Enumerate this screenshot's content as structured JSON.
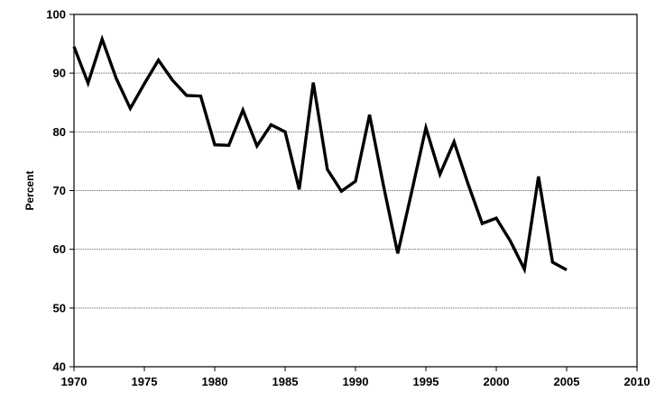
{
  "chart_data": {
    "type": "line",
    "title": "",
    "xlabel": "",
    "ylabel": "Percent",
    "xlim": [
      1970,
      2010
    ],
    "ylim": [
      40,
      100
    ],
    "xticks": [
      1970,
      1975,
      1980,
      1985,
      1990,
      1995,
      2000,
      2005,
      2010
    ],
    "yticks": [
      40,
      50,
      60,
      70,
      80,
      90,
      100
    ],
    "grid": "horizontal",
    "legend": "none",
    "series": [
      {
        "color": "#000000",
        "x": [
          1970,
          1971,
          1972,
          1973,
          1974,
          1975,
          1976,
          1977,
          1978,
          1979,
          1980,
          1981,
          1982,
          1983,
          1984,
          1985,
          1986,
          1987,
          1988,
          1989,
          1990,
          1991,
          1992,
          1993,
          1994,
          1995,
          1996,
          1997,
          1998,
          1999,
          2000,
          2001,
          2002,
          2003,
          2004,
          2005
        ],
        "y": [
          94.5,
          88.3,
          95.8,
          89.1,
          84.0,
          88.2,
          92.2,
          88.8,
          86.2,
          86.1,
          77.8,
          77.7,
          83.7,
          77.6,
          81.2,
          80.0,
          70.2,
          88.4,
          73.6,
          69.9,
          71.6,
          82.9,
          70.7,
          59.3,
          69.9,
          80.7,
          72.8,
          78.3,
          71.1,
          64.4,
          65.3,
          61.4,
          56.6,
          72.4,
          57.8,
          56.5
        ]
      }
    ]
  }
}
